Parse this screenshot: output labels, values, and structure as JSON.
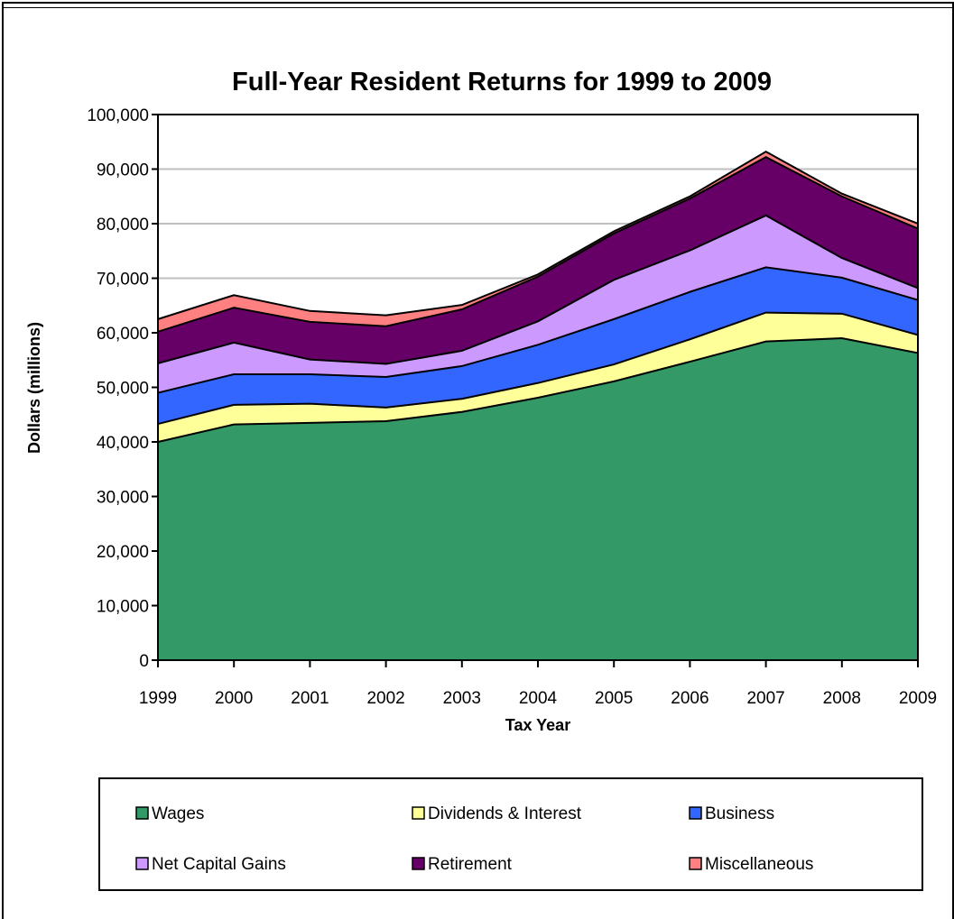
{
  "chart_data": {
    "type": "area",
    "stacked": true,
    "title": "Full-Year Resident Returns for 1999 to 2009",
    "xlabel": "Tax Year",
    "ylabel": "Dollars (millions)",
    "ylim": [
      0,
      100000
    ],
    "yticks": [
      "0",
      "10,000",
      "20,000",
      "30,000",
      "40,000",
      "50,000",
      "60,000",
      "70,000",
      "80,000",
      "90,000",
      "100,000"
    ],
    "ytick_values": [
      0,
      10000,
      20000,
      30000,
      40000,
      50000,
      60000,
      70000,
      80000,
      90000,
      100000
    ],
    "grid": true,
    "legend_position": "bottom",
    "categories": [
      "1999",
      "2000",
      "2001",
      "2002",
      "2003",
      "2004",
      "2005",
      "2006",
      "2007",
      "2008",
      "2009"
    ],
    "series": [
      {
        "name": "Wages",
        "color": "#339966",
        "values": [
          40000,
          43200,
          43500,
          43800,
          45500,
          48100,
          51100,
          54700,
          58400,
          59000,
          56300
        ]
      },
      {
        "name": "Dividends & Interest",
        "color": "#ffff99",
        "values": [
          3300,
          3600,
          3500,
          2500,
          2400,
          2700,
          3100,
          4100,
          5300,
          4500,
          3300
        ]
      },
      {
        "name": "Business",
        "color": "#3366ff",
        "values": [
          5700,
          5600,
          5400,
          5600,
          6000,
          7000,
          8300,
          8700,
          8300,
          6600,
          6400
        ]
      },
      {
        "name": "Net Capital Gains",
        "color": "#cc99ff",
        "values": [
          5400,
          5800,
          2700,
          2400,
          2800,
          4300,
          7200,
          7600,
          9500,
          3600,
          2200
        ]
      },
      {
        "name": "Retirement",
        "color": "#660066",
        "values": [
          5800,
          6400,
          6900,
          6900,
          7600,
          8200,
          8500,
          9500,
          10700,
          11300,
          10900
        ]
      },
      {
        "name": "Miscellaneous",
        "color": "#ff8080",
        "values": [
          2300,
          2300,
          2000,
          2000,
          800,
          400,
          400,
          400,
          1000,
          500,
          900
        ]
      }
    ]
  }
}
